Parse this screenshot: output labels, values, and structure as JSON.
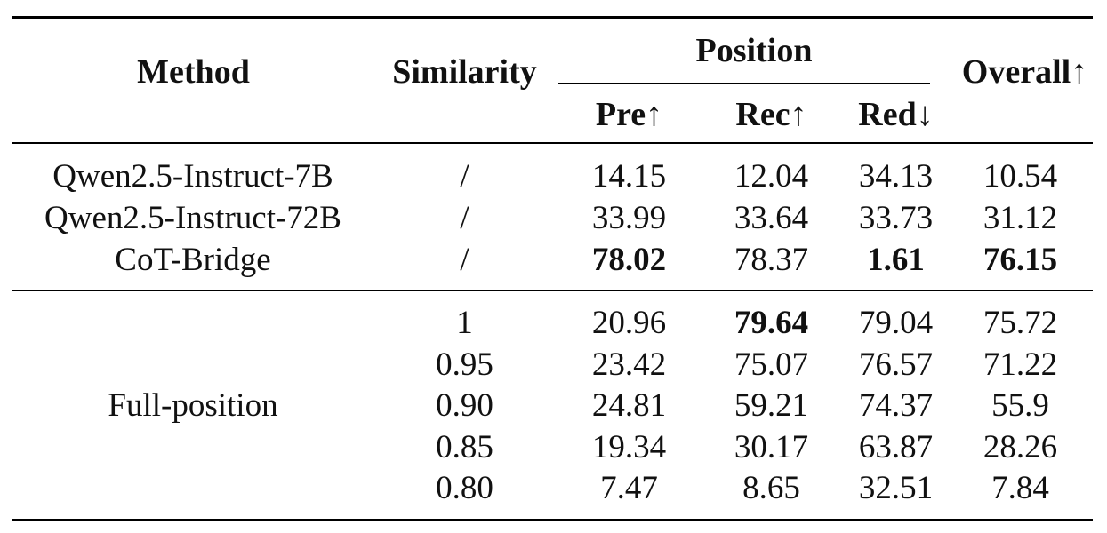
{
  "header": {
    "method": "Method",
    "similarity": "Similarity",
    "position": "Position",
    "pre": "Pre↑",
    "rec": "Rec↑",
    "red": "Red↓",
    "overall": "Overall↑"
  },
  "group1": [
    {
      "method": "Qwen2.5-Instruct-7B",
      "similarity": "/",
      "pre": "14.15",
      "rec": "12.04",
      "red": "34.13",
      "overall": "10.54"
    },
    {
      "method": "Qwen2.5-Instruct-72B",
      "similarity": "/",
      "pre": "33.99",
      "rec": "33.64",
      "red": "33.73",
      "overall": "31.12"
    },
    {
      "method": "CoT-Bridge",
      "similarity": "/",
      "pre": "78.02",
      "rec": "78.37",
      "red": "1.61",
      "overall": "76.15"
    }
  ],
  "group2": {
    "method": "Full-position",
    "rows": [
      {
        "similarity": "1",
        "pre": "20.96",
        "rec": "79.64",
        "red": "79.04",
        "overall": "75.72"
      },
      {
        "similarity": "0.95",
        "pre": "23.42",
        "rec": "75.07",
        "red": "76.57",
        "overall": "71.22"
      },
      {
        "similarity": "0.90",
        "pre": "24.81",
        "rec": "59.21",
        "red": "74.37",
        "overall": "55.9"
      },
      {
        "similarity": "0.85",
        "pre": "19.34",
        "rec": "30.17",
        "red": "63.87",
        "overall": "28.26"
      },
      {
        "similarity": "0.80",
        "pre": "7.47",
        "rec": "8.65",
        "red": "32.51",
        "overall": "7.84"
      }
    ]
  }
}
